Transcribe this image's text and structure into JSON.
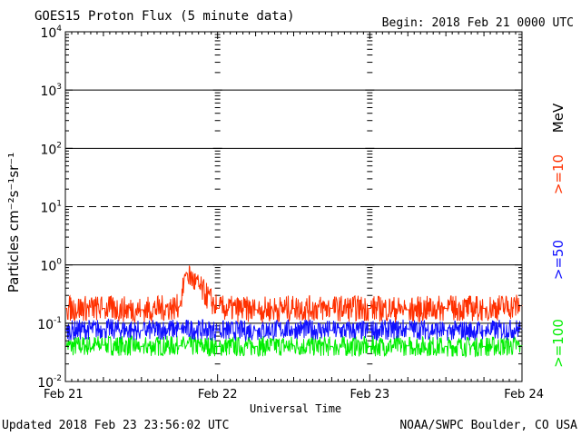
{
  "header": {
    "title": "GOES15 Proton Flux (5 minute data)",
    "begin": "Begin: 2018 Feb 21 0000 UTC"
  },
  "footer": {
    "updated": "Updated 2018 Feb 23 23:56:02 UTC",
    "credit": "NOAA/SWPC Boulder, CO USA"
  },
  "colors": {
    "ge10": "#ff3000",
    "ge50": "#1010ff",
    "ge100": "#00ee00"
  },
  "chart_data": {
    "type": "line",
    "title": "GOES15 Proton Flux (5 minute data)",
    "xlabel": "Universal Time",
    "ylabel": "Particles cm⁻²s⁻¹sr⁻¹",
    "yscale": "log",
    "ylim": [
      0.01,
      10000
    ],
    "yticks": [
      {
        "base": "10",
        "exp": "-2"
      },
      {
        "base": "10",
        "exp": "-1"
      },
      {
        "base": "10",
        "exp": "0"
      },
      {
        "base": "10",
        "exp": "1"
      },
      {
        "base": "10",
        "exp": "2"
      },
      {
        "base": "10",
        "exp": "3"
      },
      {
        "base": "10",
        "exp": "4"
      }
    ],
    "xlim": [
      "2018-02-21 00:00",
      "2018-02-24 00:00"
    ],
    "xticks": [
      "Feb 21",
      "Feb 22",
      "Feb 23",
      "Feb 24"
    ],
    "threshold_line": 10,
    "units_label": "MeV",
    "series": [
      {
        "name": ">=10",
        "color": "#ff3000",
        "x": [
          "2018-02-21 00:00",
          "2018-02-21 06:00",
          "2018-02-21 12:00",
          "2018-02-21 18:00",
          "2018-02-21 19:00",
          "2018-02-22 00:00",
          "2018-02-22 06:00",
          "2018-02-22 12:00",
          "2018-02-22 18:00",
          "2018-02-23 00:00",
          "2018-02-23 06:00",
          "2018-02-23 12:00",
          "2018-02-23 18:00",
          "2018-02-23 23:55"
        ],
        "values": [
          0.18,
          0.18,
          0.17,
          0.19,
          0.75,
          0.18,
          0.17,
          0.18,
          0.18,
          0.18,
          0.17,
          0.18,
          0.18,
          0.2
        ]
      },
      {
        "name": ">=50",
        "color": "#1010ff",
        "x": [
          "2018-02-21 00:00",
          "2018-02-21 06:00",
          "2018-02-21 12:00",
          "2018-02-21 18:00",
          "2018-02-22 00:00",
          "2018-02-22 06:00",
          "2018-02-22 12:00",
          "2018-02-22 18:00",
          "2018-02-23 00:00",
          "2018-02-23 06:00",
          "2018-02-23 12:00",
          "2018-02-23 18:00",
          "2018-02-23 23:55"
        ],
        "values": [
          0.075,
          0.08,
          0.075,
          0.08,
          0.075,
          0.075,
          0.08,
          0.075,
          0.075,
          0.08,
          0.075,
          0.075,
          0.08
        ]
      },
      {
        "name": ">=100",
        "color": "#00ee00",
        "x": [
          "2018-02-21 00:00",
          "2018-02-21 06:00",
          "2018-02-21 12:00",
          "2018-02-21 18:00",
          "2018-02-22 00:00",
          "2018-02-22 06:00",
          "2018-02-22 12:00",
          "2018-02-22 18:00",
          "2018-02-23 00:00",
          "2018-02-23 06:00",
          "2018-02-23 12:00",
          "2018-02-23 18:00",
          "2018-02-23 23:55"
        ],
        "values": [
          0.04,
          0.042,
          0.04,
          0.041,
          0.04,
          0.04,
          0.041,
          0.04,
          0.04,
          0.041,
          0.04,
          0.04,
          0.041
        ]
      }
    ]
  }
}
